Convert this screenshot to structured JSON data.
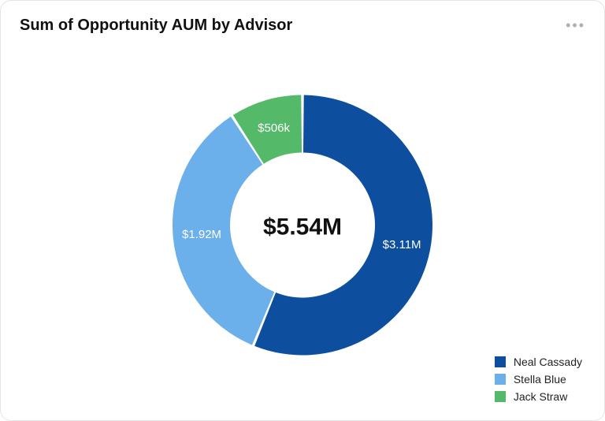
{
  "title": "Sum of Opportunity AUM by Advisor",
  "chart": {
    "type": "donut",
    "total_label": "$5.54M",
    "center_fontsize": 30,
    "outer_radius": 165,
    "inner_radius": 92,
    "gap_deg": 1.2,
    "background_color": "#ffffff",
    "slice_label_color": "#ffffff",
    "slice_label_fontsize": 15,
    "slices": [
      {
        "name": "Neal Cassady",
        "value": 3110000,
        "display": "$3.11M",
        "color": "#0d4f9e"
      },
      {
        "name": "Stella Blue",
        "value": 1920000,
        "display": "$1.92M",
        "color": "#6bb0ea"
      },
      {
        "name": "Jack Straw",
        "value": 506000,
        "display": "$506k",
        "color": "#55b96a"
      }
    ]
  },
  "legend": {
    "label_fontsize": 14,
    "swatch_size": 14
  }
}
